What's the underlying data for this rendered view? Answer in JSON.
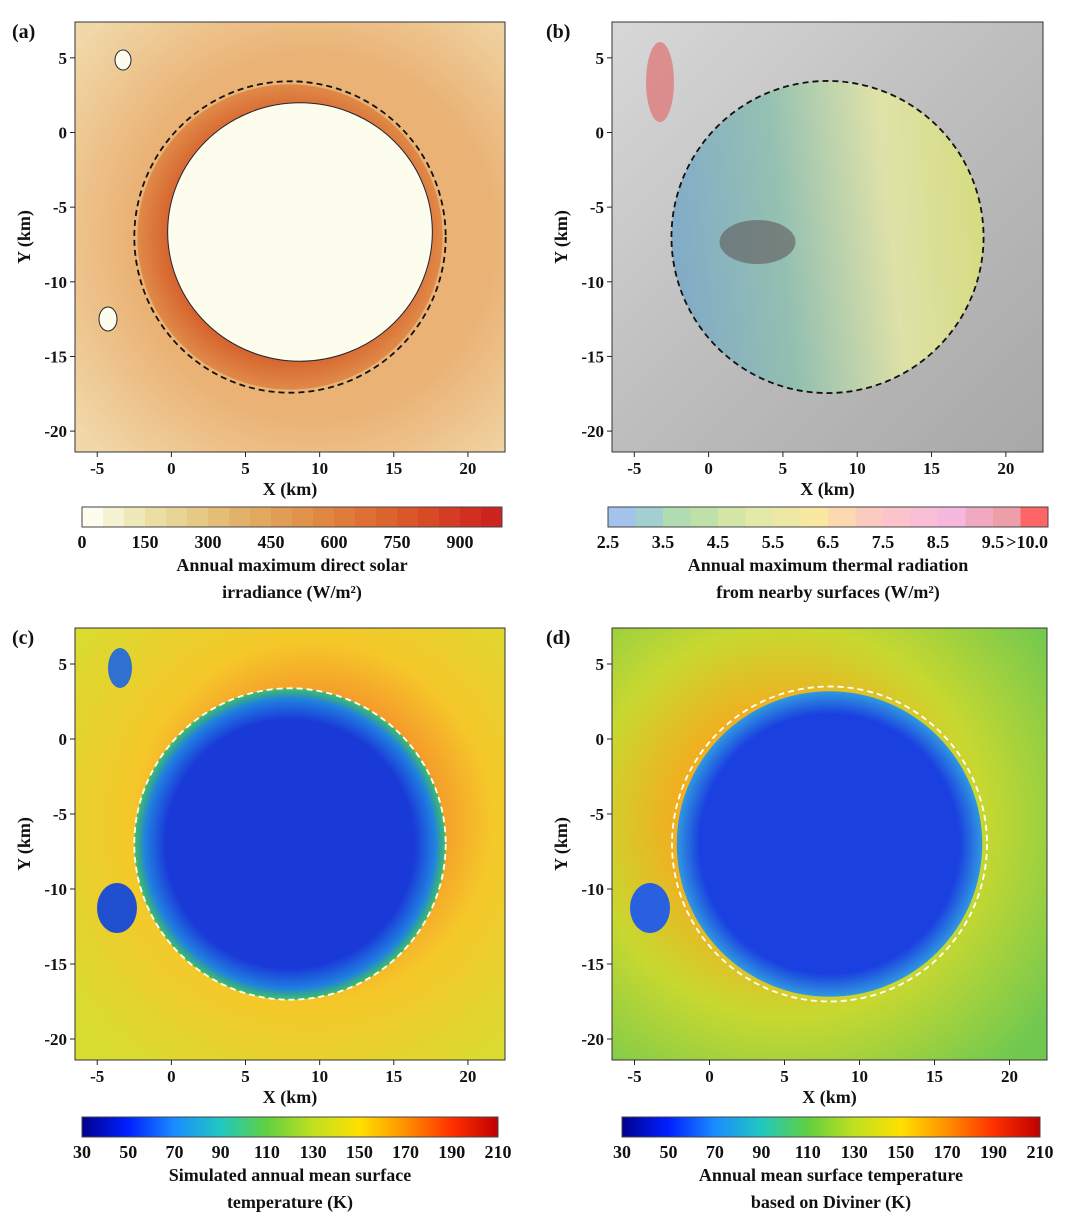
{
  "panels": [
    {
      "label": "(a)",
      "xlabel": "X (km)",
      "ylabel": "Y (km)",
      "xticks": [
        -5,
        0,
        5,
        10,
        15,
        20
      ],
      "yticks": [
        5,
        0,
        -5,
        -10,
        -15,
        -20
      ],
      "xlim": [
        -6.5,
        22.5
      ],
      "ylim": [
        -21.4,
        7.4
      ],
      "rim_circle": {
        "center": [
          8,
          -7
        ],
        "radius_km": 10.5,
        "color": "#111111"
      },
      "map_style": "irradiance",
      "colorbar": {
        "type": "discrete",
        "range": [
          0,
          1000
        ],
        "ticks": [
          "0",
          "150",
          "300",
          "450",
          "600",
          "750",
          "900"
        ],
        "tick_values": [
          0,
          150,
          300,
          450,
          600,
          750,
          900
        ],
        "colors": [
          "#fdfdef",
          "#f5f3d2",
          "#efe8b8",
          "#ebdea4",
          "#e8d494",
          "#e6c985",
          "#e4bd77",
          "#e2b26a",
          "#e2a85f",
          "#e19d55",
          "#e1924b",
          "#e08743",
          "#df7c3c",
          "#de7035",
          "#dc642f",
          "#da572a",
          "#d74a26",
          "#d43d23",
          "#d13021",
          "#cd241f"
        ],
        "title": [
          "Annual maximum direct solar",
          "irradiance (W/m²)"
        ]
      }
    },
    {
      "label": "(b)",
      "xlabel": "X (km)",
      "ylabel": "Y (km)",
      "xticks": [
        -5,
        0,
        5,
        10,
        15,
        20
      ],
      "yticks": [
        5,
        0,
        -5,
        -10,
        -15,
        -20
      ],
      "xlim": [
        -6.5,
        22.5
      ],
      "ylim": [
        -21.4,
        7.4
      ],
      "rim_circle": {
        "center": [
          8,
          -7
        ],
        "radius_km": 10.5,
        "color": "#111111"
      },
      "map_style": "thermal",
      "colorbar": {
        "type": "discrete",
        "range": [
          2.5,
          10.5
        ],
        "ticks": [
          "2.5",
          "3.5",
          "4.5",
          "5.5",
          "6.5",
          "7.5",
          "8.5",
          "9.5",
          ">10.0"
        ],
        "tick_values": [
          2.5,
          3.5,
          4.5,
          5.5,
          6.5,
          7.5,
          8.5,
          9.5,
          10.5
        ],
        "colors": [
          "#a3c3ea",
          "#a2cfd0",
          "#b1dbb1",
          "#bfe0a8",
          "#d3e6a6",
          "#e3e9a8",
          "#ede9a4",
          "#f8e8a0",
          "#fcd9af",
          "#fccbc0",
          "#fdc3cd",
          "#f9bdd6",
          "#f6b8dc",
          "#f1a9c2",
          "#ee9ea8",
          "#fd6566"
        ],
        "title": [
          "Annual maximum thermal radiation",
          "from nearby surfaces (W/m²)"
        ]
      }
    },
    {
      "label": "(c)",
      "xlabel": "X (km)",
      "ylabel": "Y (km)",
      "xticks": [
        -5,
        0,
        5,
        10,
        15,
        20
      ],
      "yticks": [
        5,
        0,
        -5,
        -10,
        -15,
        -20
      ],
      "xlim": [
        -6.5,
        22.5
      ],
      "ylim": [
        -21.4,
        7.4
      ],
      "rim_circle": {
        "center": [
          8,
          -7
        ],
        "radius_km": 10.5,
        "color": "#ffffff"
      },
      "map_style": "simulated",
      "colorbar": {
        "type": "continuous",
        "range": [
          30,
          210
        ],
        "ticks": [
          "30",
          "50",
          "70",
          "90",
          "110",
          "130",
          "150",
          "170",
          "190",
          "210"
        ],
        "tick_values": [
          30,
          50,
          70,
          90,
          110,
          130,
          150,
          170,
          190,
          210
        ],
        "colors": [
          "#00008f",
          "#0020ff",
          "#1a8cff",
          "#20c8c0",
          "#60d040",
          "#c0e020",
          "#ffe000",
          "#ff9000",
          "#ff3000",
          "#c00000"
        ],
        "title": [
          "Simulated annual mean surface",
          "temperature (K)"
        ]
      }
    },
    {
      "label": "(d)",
      "xlabel": "X (km)",
      "ylabel": "Y (km)",
      "xticks": [
        -5,
        0,
        5,
        10,
        15,
        20
      ],
      "yticks": [
        5,
        0,
        -5,
        -10,
        -15,
        -20
      ],
      "xlim": [
        -6.5,
        22.5
      ],
      "ylim": [
        -21.4,
        7.4
      ],
      "rim_circle": {
        "center": [
          8,
          -7
        ],
        "radius_km": 10.5,
        "color": "#ffffff"
      },
      "map_style": "diviner",
      "colorbar": {
        "type": "continuous",
        "range": [
          30,
          210
        ],
        "ticks": [
          "30",
          "50",
          "70",
          "90",
          "110",
          "130",
          "150",
          "170",
          "190",
          "210"
        ],
        "tick_values": [
          30,
          50,
          70,
          90,
          110,
          130,
          150,
          170,
          190,
          210
        ],
        "colors": [
          "#00008f",
          "#0020ff",
          "#1a8cff",
          "#20c8c0",
          "#60d040",
          "#c0e020",
          "#ffe000",
          "#ff9000",
          "#ff3000",
          "#c00000"
        ],
        "title": [
          "Annual mean surface temperature",
          "based on Diviner (K)"
        ]
      }
    }
  ]
}
